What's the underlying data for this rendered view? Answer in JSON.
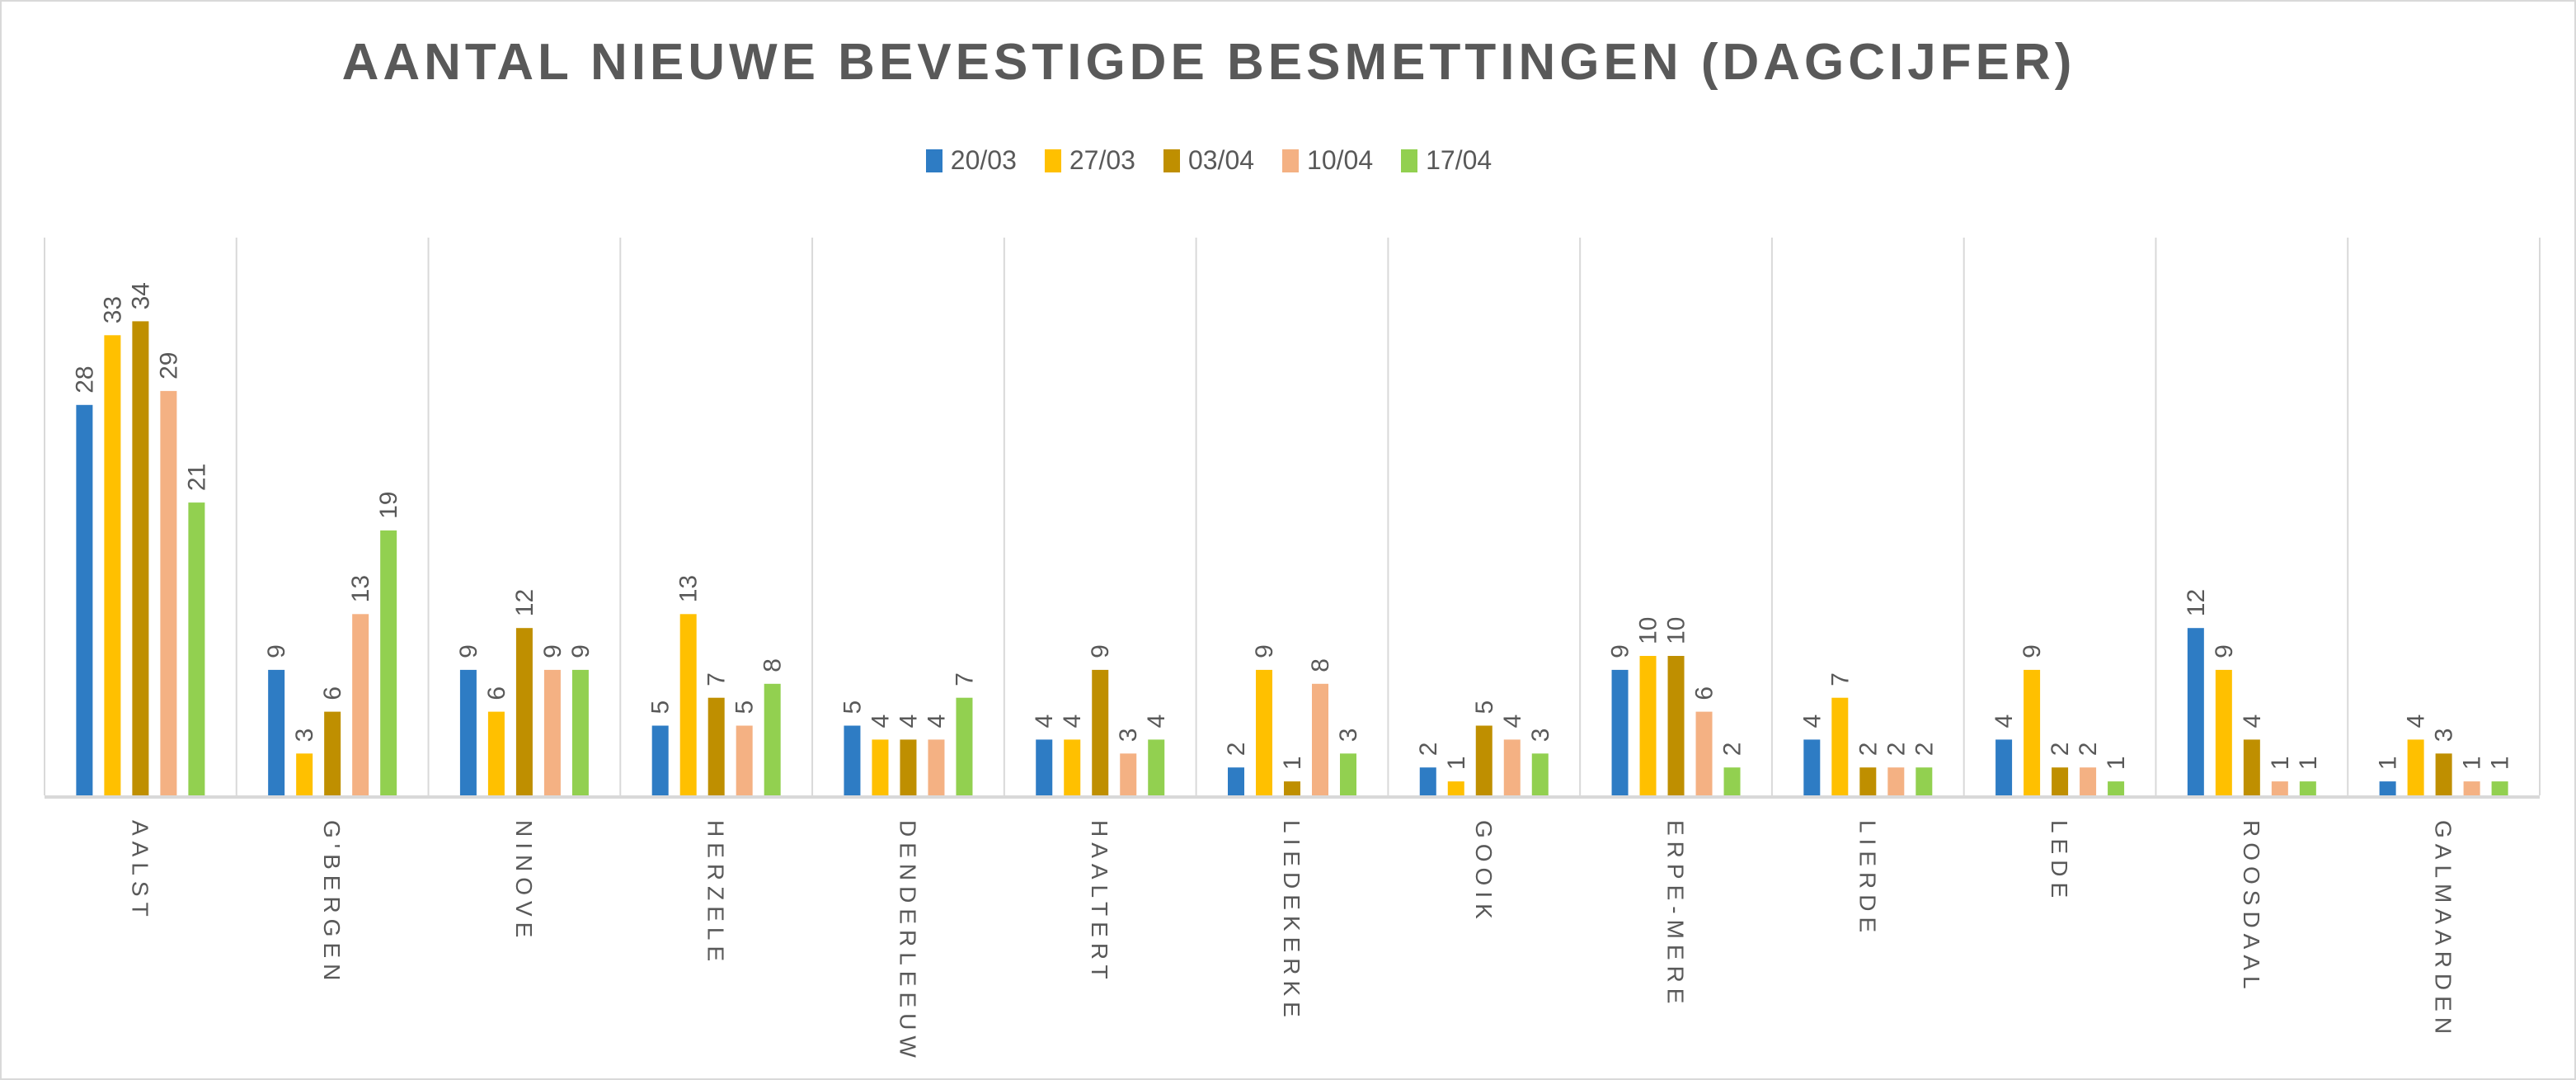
{
  "chart_data": {
    "type": "bar",
    "title": "AANTAL NIEUWE BEVESTIGDE BESMETTINGEN (DAGCIJFER)",
    "xlabel": "",
    "ylabel": "",
    "ylim": [
      0,
      40
    ],
    "grid": "vertical category separators",
    "legend_position": "top",
    "categories": [
      "AALST",
      "G'BERGEN",
      "NINOVE",
      "HERZELE",
      "DENDERLEEUW",
      "HAALTERT",
      "LIEDEKERKE",
      "GOOIK",
      "ERPE-MERE",
      "LIERDE",
      "LEDE",
      "ROOSDAAL",
      "GALMAARDEN"
    ],
    "series": [
      {
        "name": "20/03",
        "color": "#2e7cc4",
        "values": [
          28,
          9,
          9,
          5,
          5,
          4,
          2,
          2,
          9,
          4,
          4,
          12,
          1
        ]
      },
      {
        "name": "27/03",
        "color": "#ffc000",
        "values": [
          33,
          3,
          6,
          13,
          4,
          4,
          9,
          1,
          10,
          7,
          9,
          9,
          4
        ]
      },
      {
        "name": "03/04",
        "color": "#bf8f00",
        "values": [
          34,
          6,
          12,
          7,
          4,
          9,
          1,
          5,
          10,
          2,
          2,
          4,
          3
        ]
      },
      {
        "name": "10/04",
        "color": "#f4b183",
        "values": [
          29,
          13,
          9,
          5,
          4,
          3,
          8,
          4,
          6,
          2,
          2,
          1,
          1
        ]
      },
      {
        "name": "17/04",
        "color": "#92d050",
        "values": [
          21,
          19,
          9,
          8,
          7,
          4,
          3,
          3,
          2,
          2,
          1,
          1,
          1
        ]
      }
    ]
  }
}
